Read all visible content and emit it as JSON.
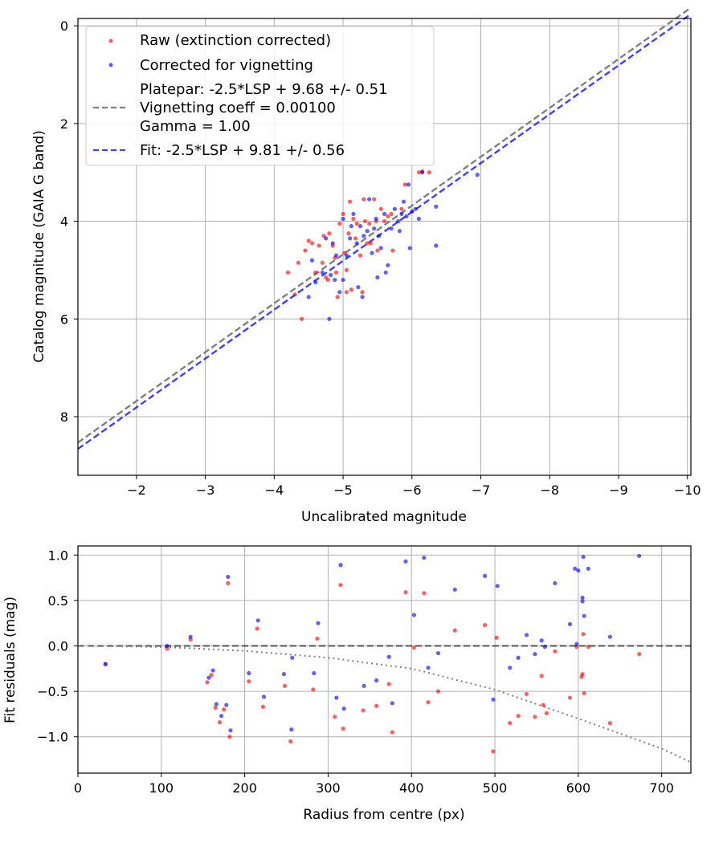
{
  "chart_data": [
    {
      "type": "scatter",
      "xlabel": "Uncalibrated magnitude",
      "ylabel": "Catalog magnitude (GAIA G band)",
      "xlim": [
        -1.15,
        -10.05
      ],
      "ylim": [
        9.2,
        -0.15
      ],
      "x_ticks": [
        -2,
        -3,
        -4,
        -5,
        -6,
        -7,
        -8,
        -9,
        -10
      ],
      "x_tick_labels": [
        "−2",
        "−3",
        "−4",
        "−5",
        "−6",
        "−7",
        "−8",
        "−9",
        "−10"
      ],
      "y_ticks": [
        0,
        2,
        4,
        6,
        8
      ],
      "y_tick_labels": [
        "0",
        "2",
        "4",
        "6",
        "8"
      ],
      "grid": true,
      "legend_position": "top-left",
      "legend": [
        {
          "label": "Raw (extinction corrected)",
          "kind": "scatter",
          "color": "#ff0000"
        },
        {
          "label": "Corrected for vignetting",
          "kind": "scatter",
          "color": "#0000ff"
        },
        {
          "label_lines": [
            "Platepar: -2.5*LSP + 9.68 +/- 0.51",
            "Vignetting coeff = 0.00100",
            "Gamma = 1.00"
          ],
          "kind": "dashed",
          "color": "#808080"
        },
        {
          "label": "Fit: -2.5*LSP + 9.81 +/- 0.56",
          "kind": "dashed",
          "color": "#0000ff"
        }
      ],
      "lines": [
        {
          "name": "platepar",
          "color": "#808080",
          "slope": 1,
          "intercept": 9.68
        },
        {
          "name": "fit",
          "color": "#0000ff",
          "slope": 1,
          "intercept": 9.81
        }
      ],
      "series": [
        {
          "name": "Raw (extinction corrected)",
          "color": "#ff0000",
          "points": [
            [
              -4.2,
              5.05
            ],
            [
              -4.3,
              5.5
            ],
            [
              -4.35,
              4.85
            ],
            [
              -4.4,
              6.0
            ],
            [
              -4.45,
              4.6
            ],
            [
              -4.5,
              4.4
            ],
            [
              -4.55,
              4.45
            ],
            [
              -4.6,
              5.05
            ],
            [
              -4.65,
              4.5
            ],
            [
              -4.7,
              4.85
            ],
            [
              -4.72,
              4.3
            ],
            [
              -4.75,
              5.15
            ],
            [
              -4.78,
              5.2
            ],
            [
              -4.8,
              4.25
            ],
            [
              -4.85,
              4.5
            ],
            [
              -4.88,
              4.75
            ],
            [
              -4.9,
              5.05
            ],
            [
              -4.92,
              5.55
            ],
            [
              -4.95,
              4.05
            ],
            [
              -5.0,
              3.85
            ],
            [
              -5.02,
              4.65
            ],
            [
              -5.05,
              5.45
            ],
            [
              -5.08,
              4.25
            ],
            [
              -5.1,
              3.6
            ],
            [
              -5.12,
              5.4
            ],
            [
              -5.15,
              3.95
            ],
            [
              -5.18,
              4.35
            ],
            [
              -5.2,
              4.05
            ],
            [
              -5.25,
              4.7
            ],
            [
              -5.28,
              5.45
            ],
            [
              -5.3,
              3.55
            ],
            [
              -5.32,
              4.0
            ],
            [
              -5.35,
              4.45
            ],
            [
              -5.38,
              4.05
            ],
            [
              -5.4,
              4.45
            ],
            [
              -5.45,
              3.55
            ],
            [
              -5.48,
              4.0
            ],
            [
              -5.5,
              4.6
            ],
            [
              -5.55,
              3.75
            ],
            [
              -5.6,
              4.0
            ],
            [
              -5.65,
              3.9
            ],
            [
              -5.7,
              3.85
            ],
            [
              -5.72,
              4.6
            ],
            [
              -5.85,
              3.75
            ],
            [
              -5.9,
              3.25
            ],
            [
              -6.1,
              3.0
            ],
            [
              -6.15,
              2.98
            ],
            [
              -6.25,
              3.0
            ],
            [
              -5.05,
              5.0
            ]
          ]
        },
        {
          "name": "Corrected for vignetting",
          "color": "#0000ff",
          "points": [
            [
              -4.5,
              5.55
            ],
            [
              -4.55,
              4.8
            ],
            [
              -4.6,
              5.25
            ],
            [
              -4.7,
              5.05
            ],
            [
              -4.75,
              4.35
            ],
            [
              -4.8,
              6.0
            ],
            [
              -4.82,
              5.1
            ],
            [
              -4.85,
              4.45
            ],
            [
              -4.88,
              5.2
            ],
            [
              -4.9,
              4.7
            ],
            [
              -4.95,
              5.45
            ],
            [
              -5.0,
              5.2
            ],
            [
              -5.05,
              4.7
            ],
            [
              -5.1,
              4.35
            ],
            [
              -5.12,
              4.1
            ],
            [
              -5.15,
              3.85
            ],
            [
              -5.2,
              4.45
            ],
            [
              -5.22,
              5.35
            ],
            [
              -5.25,
              4.1
            ],
            [
              -5.28,
              5.55
            ],
            [
              -5.3,
              4.3
            ],
            [
              -5.35,
              4.2
            ],
            [
              -5.38,
              3.55
            ],
            [
              -5.42,
              4.65
            ],
            [
              -5.45,
              4.15
            ],
            [
              -5.48,
              3.95
            ],
            [
              -5.5,
              5.15
            ],
            [
              -5.52,
              4.3
            ],
            [
              -5.55,
              4.55
            ],
            [
              -5.6,
              3.85
            ],
            [
              -5.62,
              5.05
            ],
            [
              -5.65,
              4.9
            ],
            [
              -5.7,
              4.15
            ],
            [
              -5.75,
              3.75
            ],
            [
              -5.8,
              4.0
            ],
            [
              -5.82,
              4.2
            ],
            [
              -5.85,
              3.85
            ],
            [
              -5.88,
              3.6
            ],
            [
              -5.92,
              3.9
            ],
            [
              -5.95,
              3.25
            ],
            [
              -5.97,
              4.55
            ],
            [
              -6.0,
              3.8
            ],
            [
              -6.05,
              3.75
            ],
            [
              -6.1,
              3.95
            ],
            [
              -6.15,
              3.0
            ],
            [
              -6.35,
              3.7
            ],
            [
              -6.35,
              4.5
            ],
            [
              -6.95,
              3.05
            ],
            [
              -5.0,
              3.95
            ]
          ]
        }
      ]
    },
    {
      "type": "scatter",
      "xlabel": "Radius from centre (px)",
      "ylabel": "Fit residuals (mag)",
      "xlim": [
        0,
        735
      ],
      "ylim": [
        -1.4,
        1.1
      ],
      "x_ticks": [
        0,
        100,
        200,
        300,
        400,
        500,
        600,
        700
      ],
      "x_tick_labels": [
        "0",
        "100",
        "200",
        "300",
        "400",
        "500",
        "600",
        "700"
      ],
      "y_ticks": [
        -1.0,
        -0.5,
        0.0,
        0.5,
        1.0
      ],
      "y_tick_labels": [
        "−1.0",
        "−0.5",
        "0.0",
        "0.5",
        "1.0"
      ],
      "grid": true,
      "reference_line": {
        "y": 0,
        "color": "#000000"
      },
      "vignetting_curve": {
        "color": "#808080",
        "points": [
          [
            0,
            0.0
          ],
          [
            100,
            -0.01
          ],
          [
            200,
            -0.055
          ],
          [
            300,
            -0.13
          ],
          [
            400,
            -0.25
          ],
          [
            500,
            -0.48
          ],
          [
            600,
            -0.8
          ],
          [
            700,
            -1.13
          ],
          [
            735,
            -1.28
          ]
        ]
      },
      "series": [
        {
          "name": "Raw (extinction corrected)",
          "color": "#ff0000",
          "points": [
            [
              33,
              -0.2
            ],
            [
              107,
              -0.03
            ],
            [
              135,
              0.07
            ],
            [
              155,
              -0.4
            ],
            [
              160,
              -0.32
            ],
            [
              165,
              -0.68
            ],
            [
              170,
              -0.84
            ],
            [
              175,
              -0.7
            ],
            [
              180,
              0.69
            ],
            [
              182,
              -1.0
            ],
            [
              205,
              -0.39
            ],
            [
              215,
              0.19
            ],
            [
              222,
              -0.67
            ],
            [
              248,
              -0.44
            ],
            [
              255,
              -1.05
            ],
            [
              282,
              -0.48
            ],
            [
              287,
              0.08
            ],
            [
              308,
              -0.78
            ],
            [
              315,
              0.67
            ],
            [
              318,
              -0.91
            ],
            [
              342,
              -0.71
            ],
            [
              358,
              -0.66
            ],
            [
              373,
              -0.42
            ],
            [
              377,
              -0.95
            ],
            [
              393,
              0.59
            ],
            [
              403,
              -0.02
            ],
            [
              415,
              0.58
            ],
            [
              420,
              -0.62
            ],
            [
              432,
              -0.5
            ],
            [
              452,
              0.17
            ],
            [
              488,
              0.23
            ],
            [
              498,
              -1.16
            ],
            [
              502,
              0.09
            ],
            [
              518,
              -0.85
            ],
            [
              528,
              -0.77
            ],
            [
              538,
              -0.53
            ],
            [
              548,
              -0.78
            ],
            [
              556,
              -0.33
            ],
            [
              558,
              -0.65
            ],
            [
              562,
              -0.74
            ],
            [
              572,
              -0.06
            ],
            [
              590,
              -0.57
            ],
            [
              598,
              -0.01
            ],
            [
              604,
              -0.34
            ],
            [
              605,
              -0.31
            ],
            [
              606,
              0.13
            ],
            [
              607,
              -0.52
            ],
            [
              612,
              -0.01
            ],
            [
              638,
              -0.85
            ],
            [
              673,
              -0.09
            ]
          ]
        },
        {
          "name": "Corrected for vignetting",
          "color": "#0000ff",
          "points": [
            [
              33,
              -0.2
            ],
            [
              107,
              0.0
            ],
            [
              135,
              0.1
            ],
            [
              157,
              -0.35
            ],
            [
              162,
              -0.27
            ],
            [
              166,
              -0.64
            ],
            [
              172,
              -0.77
            ],
            [
              178,
              -0.65
            ],
            [
              180,
              0.76
            ],
            [
              183,
              -0.93
            ],
            [
              205,
              -0.3
            ],
            [
              216,
              0.28
            ],
            [
              223,
              -0.56
            ],
            [
              247,
              -0.31
            ],
            [
              256,
              -0.92
            ],
            [
              257,
              -0.13
            ],
            [
              283,
              -0.3
            ],
            [
              288,
              0.25
            ],
            [
              310,
              -0.57
            ],
            [
              315,
              0.89
            ],
            [
              319,
              -0.69
            ],
            [
              343,
              -0.44
            ],
            [
              358,
              -0.38
            ],
            [
              373,
              -0.12
            ],
            [
              377,
              -0.63
            ],
            [
              393,
              0.93
            ],
            [
              403,
              0.34
            ],
            [
              415,
              0.97
            ],
            [
              420,
              -0.24
            ],
            [
              432,
              -0.08
            ],
            [
              452,
              0.62
            ],
            [
              488,
              0.77
            ],
            [
              498,
              -0.59
            ],
            [
              503,
              0.66
            ],
            [
              518,
              -0.24
            ],
            [
              528,
              -0.13
            ],
            [
              538,
              0.12
            ],
            [
              548,
              -0.09
            ],
            [
              556,
              0.06
            ],
            [
              560,
              -0.01
            ],
            [
              572,
              0.69
            ],
            [
              590,
              0.24
            ],
            [
              596,
              0.85
            ],
            [
              598,
              0.02
            ],
            [
              600,
              0.83
            ],
            [
              605,
              0.49
            ],
            [
              605,
              0.53
            ],
            [
              606,
              0.98
            ],
            [
              607,
              0.33
            ],
            [
              612,
              0.85
            ],
            [
              638,
              0.1
            ],
            [
              673,
              0.99
            ]
          ]
        }
      ]
    }
  ]
}
